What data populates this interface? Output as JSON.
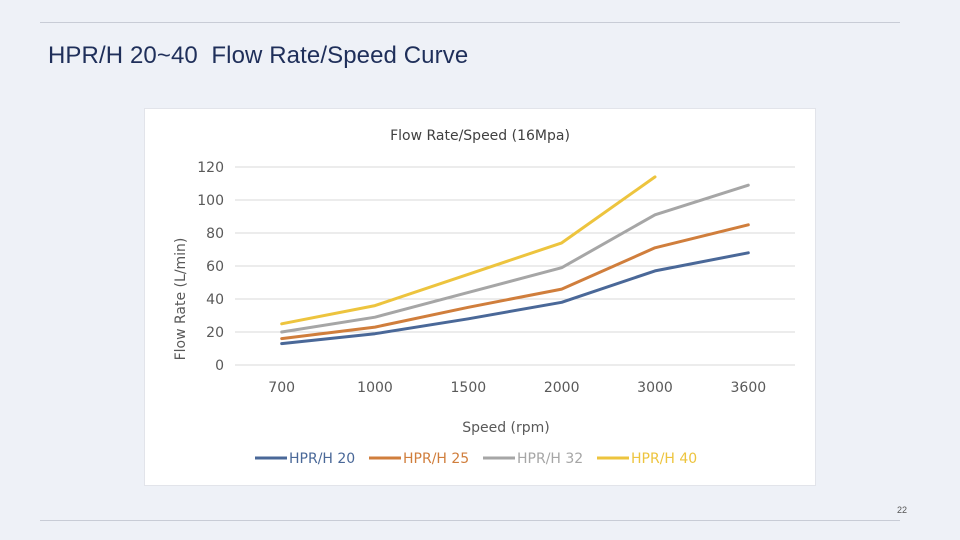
{
  "slide": {
    "title": "HPR/H 20~40  Flow Rate/Speed Curve",
    "page_number": "22"
  },
  "colors": {
    "HPR/H 20": "#4a6898",
    "HPR/H 25": "#d07e3c",
    "HPR/H 32": "#a6a6a6",
    "HPR/H 40": "#edc43e"
  },
  "chart_data": {
    "type": "line",
    "title": "Flow Rate/Speed  (16Mpa)",
    "xlabel": "Speed (rpm)",
    "ylabel": "Flow Rate  (L/min)",
    "categories": [
      "700",
      "1000",
      "1500",
      "2000",
      "3000",
      "3600"
    ],
    "ylim": [
      0,
      120
    ],
    "yticks": [
      "0",
      "20",
      "40",
      "60",
      "80",
      "100",
      "120"
    ],
    "grid": true,
    "legend_position": "bottom",
    "series": [
      {
        "name": "HPR/H 20",
        "values": [
          13,
          19,
          28,
          38,
          57,
          68
        ]
      },
      {
        "name": "HPR/H 25",
        "values": [
          16,
          23,
          35,
          46,
          71,
          85
        ]
      },
      {
        "name": "HPR/H 32",
        "values": [
          20,
          29,
          44,
          59,
          91,
          109
        ]
      },
      {
        "name": "HPR/H 40",
        "values": [
          25,
          36,
          55,
          74,
          114,
          null
        ]
      }
    ]
  }
}
